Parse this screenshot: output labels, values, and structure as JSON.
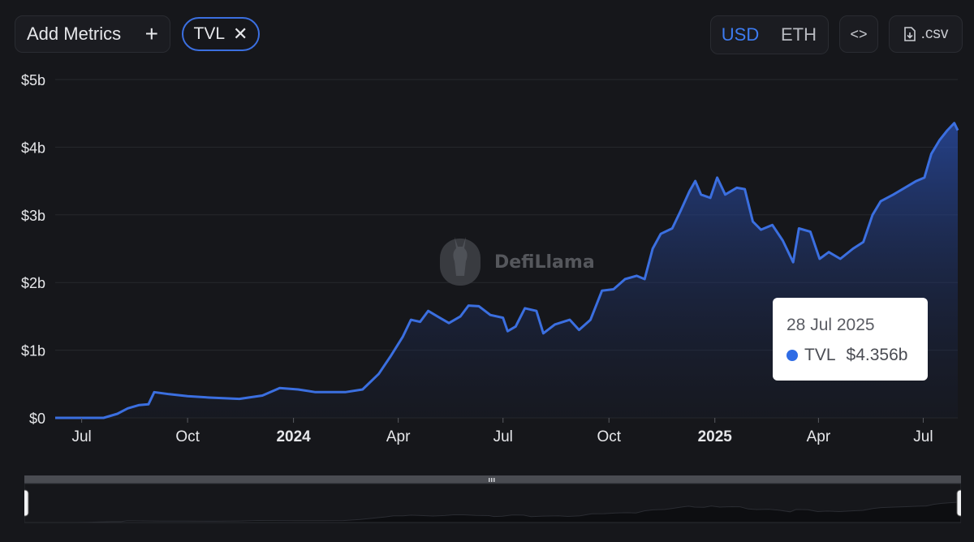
{
  "toolbar": {
    "add_metrics_label": "Add Metrics",
    "add_icon": "plus-icon",
    "metric_chip_label": "TVL",
    "remove_icon": "close-icon",
    "currency_usd": "USD",
    "currency_eth": "ETH",
    "selected_currency": "USD",
    "embed_icon": "code-icon",
    "csv_label": ".csv",
    "csv_icon": "download-file-icon"
  },
  "watermark": {
    "text": "DefiLlama",
    "logo": "llama-logo"
  },
  "tooltip": {
    "date": "28 Jul 2025",
    "series": "TVL",
    "value": "$4.356b"
  },
  "colors": {
    "accent": "#3b6fe0",
    "line": "#3b6fe0",
    "background": "#16171b"
  },
  "chart_data": {
    "type": "area",
    "series_name": "TVL",
    "ylim": [
      0,
      5
    ],
    "y_ticks": [
      {
        "v": 0,
        "label": "$0"
      },
      {
        "v": 1,
        "label": "$1b"
      },
      {
        "v": 2,
        "label": "$2b"
      },
      {
        "v": 3,
        "label": "$3b"
      },
      {
        "v": 4,
        "label": "$4b"
      },
      {
        "v": 5,
        "label": "$5b"
      }
    ],
    "x_start": "2023-06-08",
    "x_end": "2025-07-31",
    "x_ticks": [
      {
        "date": "2023-07-01",
        "label": "Jul",
        "bold": false
      },
      {
        "date": "2023-10-01",
        "label": "Oct",
        "bold": false
      },
      {
        "date": "2024-01-01",
        "label": "2024",
        "bold": true
      },
      {
        "date": "2024-04-01",
        "label": "Apr",
        "bold": false
      },
      {
        "date": "2024-07-01",
        "label": "Jul",
        "bold": false
      },
      {
        "date": "2024-10-01",
        "label": "Oct",
        "bold": false
      },
      {
        "date": "2025-01-01",
        "label": "2025",
        "bold": true
      },
      {
        "date": "2025-04-01",
        "label": "Apr",
        "bold": false
      },
      {
        "date": "2025-07-01",
        "label": "Jul",
        "bold": false
      }
    ],
    "points": [
      [
        "2023-06-08",
        0.0
      ],
      [
        "2023-07-20",
        0.0
      ],
      [
        "2023-08-01",
        0.06
      ],
      [
        "2023-08-10",
        0.14
      ],
      [
        "2023-08-20",
        0.19
      ],
      [
        "2023-08-28",
        0.2
      ],
      [
        "2023-09-02",
        0.38
      ],
      [
        "2023-09-15",
        0.35
      ],
      [
        "2023-10-01",
        0.32
      ],
      [
        "2023-10-20",
        0.3
      ],
      [
        "2023-11-15",
        0.28
      ],
      [
        "2023-12-05",
        0.33
      ],
      [
        "2023-12-20",
        0.44
      ],
      [
        "2024-01-05",
        0.42
      ],
      [
        "2024-01-20",
        0.38
      ],
      [
        "2024-02-15",
        0.38
      ],
      [
        "2024-03-01",
        0.42
      ],
      [
        "2024-03-15",
        0.65
      ],
      [
        "2024-03-25",
        0.9
      ],
      [
        "2024-04-05",
        1.2
      ],
      [
        "2024-04-12",
        1.45
      ],
      [
        "2024-04-20",
        1.42
      ],
      [
        "2024-04-27",
        1.58
      ],
      [
        "2024-05-05",
        1.5
      ],
      [
        "2024-05-15",
        1.4
      ],
      [
        "2024-05-25",
        1.5
      ],
      [
        "2024-06-01",
        1.66
      ],
      [
        "2024-06-10",
        1.65
      ],
      [
        "2024-06-20",
        1.52
      ],
      [
        "2024-07-01",
        1.48
      ],
      [
        "2024-07-05",
        1.28
      ],
      [
        "2024-07-12",
        1.35
      ],
      [
        "2024-07-20",
        1.62
      ],
      [
        "2024-07-30",
        1.58
      ],
      [
        "2024-08-05",
        1.25
      ],
      [
        "2024-08-15",
        1.38
      ],
      [
        "2024-08-28",
        1.45
      ],
      [
        "2024-09-05",
        1.3
      ],
      [
        "2024-09-15",
        1.45
      ],
      [
        "2024-09-25",
        1.88
      ],
      [
        "2024-10-05",
        1.9
      ],
      [
        "2024-10-15",
        2.05
      ],
      [
        "2024-10-25",
        2.1
      ],
      [
        "2024-11-01",
        2.05
      ],
      [
        "2024-11-08",
        2.5
      ],
      [
        "2024-11-15",
        2.72
      ],
      [
        "2024-11-25",
        2.8
      ],
      [
        "2024-12-02",
        3.05
      ],
      [
        "2024-12-10",
        3.35
      ],
      [
        "2024-12-15",
        3.5
      ],
      [
        "2024-12-20",
        3.3
      ],
      [
        "2024-12-28",
        3.25
      ],
      [
        "2025-01-03",
        3.55
      ],
      [
        "2025-01-10",
        3.3
      ],
      [
        "2025-01-20",
        3.4
      ],
      [
        "2025-01-27",
        3.38
      ],
      [
        "2025-02-03",
        2.9
      ],
      [
        "2025-02-10",
        2.78
      ],
      [
        "2025-02-20",
        2.85
      ],
      [
        "2025-03-01",
        2.62
      ],
      [
        "2025-03-10",
        2.3
      ],
      [
        "2025-03-15",
        2.8
      ],
      [
        "2025-03-25",
        2.75
      ],
      [
        "2025-04-02",
        2.35
      ],
      [
        "2025-04-10",
        2.45
      ],
      [
        "2025-04-20",
        2.35
      ],
      [
        "2025-05-01",
        2.5
      ],
      [
        "2025-05-10",
        2.6
      ],
      [
        "2025-05-18",
        3.0
      ],
      [
        "2025-05-25",
        3.2
      ],
      [
        "2025-06-05",
        3.3
      ],
      [
        "2025-06-15",
        3.4
      ],
      [
        "2025-06-25",
        3.5
      ],
      [
        "2025-07-02",
        3.55
      ],
      [
        "2025-07-08",
        3.9
      ],
      [
        "2025-07-15",
        4.1
      ],
      [
        "2025-07-22",
        4.25
      ],
      [
        "2025-07-28",
        4.356
      ],
      [
        "2025-07-31",
        4.25
      ]
    ]
  },
  "brush": {
    "handle_icon": "grip-icon"
  }
}
